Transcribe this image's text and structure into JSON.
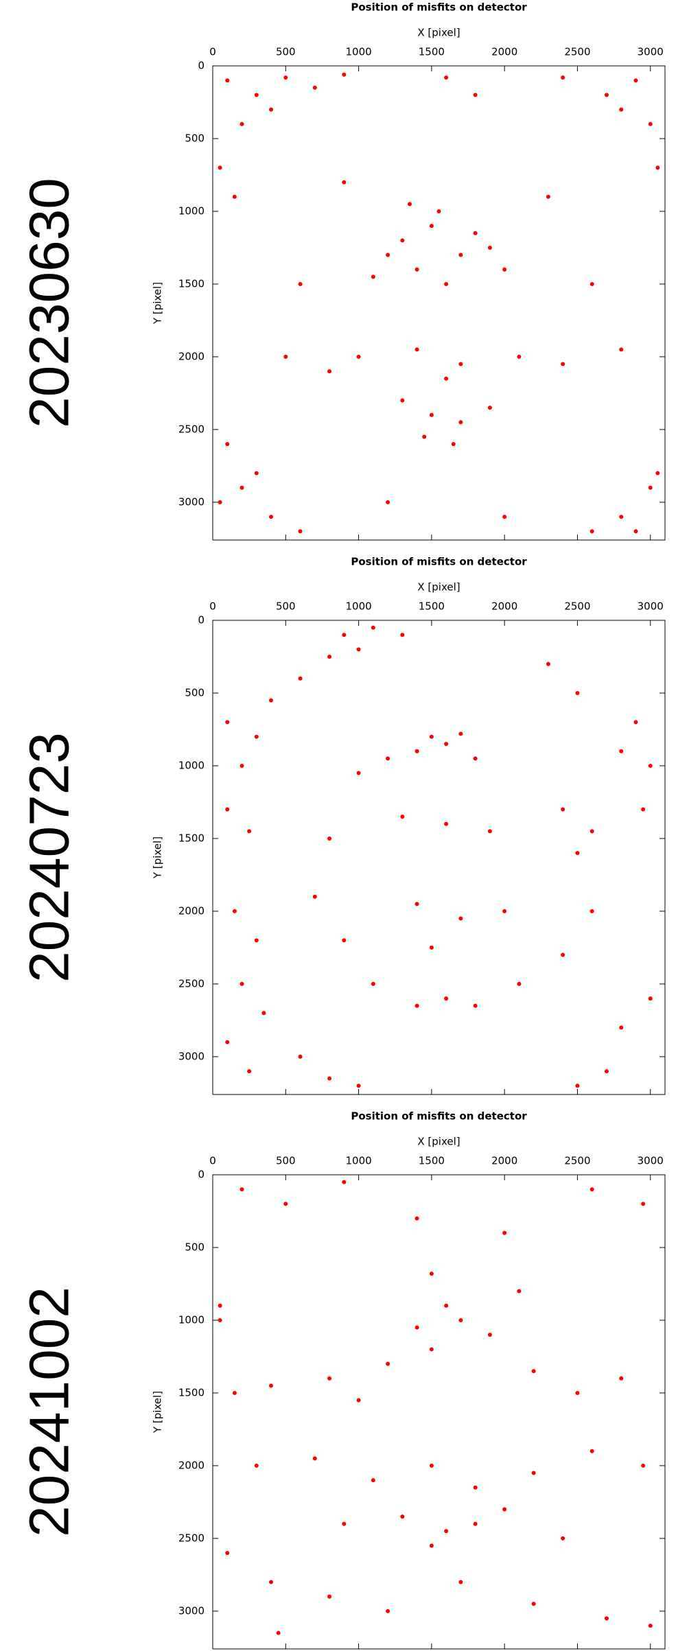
{
  "chart_data": [
    {
      "type": "scatter",
      "title": "Position of misfits on detector",
      "xlabel": "X [pixel]",
      "ylabel": "Y [pixel]",
      "date_label": "20230630",
      "xlim": [
        0,
        3100
      ],
      "ylim": [
        0,
        3260
      ],
      "xticks": [
        0,
        500,
        1000,
        1500,
        2000,
        2500,
        3000
      ],
      "yticks": [
        0,
        500,
        1000,
        1500,
        2000,
        2500,
        3000
      ],
      "y_inverted": true,
      "series": [
        {
          "color": "#ff0000",
          "x": [
            100,
            300,
            500,
            200,
            700,
            50,
            150,
            400,
            900,
            2400,
            2700,
            2900,
            3000,
            2800,
            3050,
            100,
            200,
            400,
            600,
            50,
            300,
            2800,
            3000,
            2600,
            3050,
            2900,
            1300,
            1500,
            1700,
            1400,
            1900,
            1100,
            1600,
            2000,
            1200,
            1800,
            1550,
            1350,
            1000,
            1400,
            1700,
            2100,
            1600,
            1300,
            1500,
            1700,
            1900,
            1450,
            1650,
            800,
            2400,
            2800,
            500,
            900,
            2300,
            600,
            2600,
            1200,
            2000,
            1600,
            1800
          ],
          "y": [
            100,
            200,
            80,
            400,
            150,
            700,
            900,
            300,
            60,
            80,
            200,
            100,
            400,
            300,
            700,
            2600,
            2900,
            3100,
            3200,
            3000,
            2800,
            3100,
            2900,
            3200,
            2800,
            3200,
            1200,
            1100,
            1300,
            1400,
            1250,
            1450,
            1500,
            1400,
            1300,
            1150,
            1000,
            950,
            2000,
            1950,
            2050,
            2000,
            2150,
            2300,
            2400,
            2450,
            2350,
            2550,
            2600,
            2100,
            2050,
            1950,
            2000,
            800,
            900,
            1500,
            1500,
            3000,
            3100,
            80,
            200
          ]
        }
      ]
    },
    {
      "type": "scatter",
      "title": "Position of misfits on detector",
      "xlabel": "X [pixel]",
      "ylabel": "Y [pixel]",
      "date_label": "20240723",
      "xlim": [
        0,
        3100
      ],
      "ylim": [
        0,
        3260
      ],
      "xticks": [
        0,
        500,
        1000,
        1500,
        2000,
        2500,
        3000
      ],
      "yticks": [
        0,
        500,
        1000,
        1500,
        2000,
        2500,
        3000
      ],
      "y_inverted": true,
      "series": [
        {
          "color": "#ff0000",
          "x": [
            900,
            1100,
            800,
            600,
            1000,
            1300,
            400,
            100,
            300,
            200,
            100,
            250,
            150,
            300,
            200,
            350,
            100,
            250,
            1500,
            1600,
            1700,
            1400,
            1800,
            1200,
            1000,
            800,
            700,
            900,
            1100,
            1400,
            1600,
            1800,
            2100,
            2400,
            2600,
            2500,
            2400,
            1300,
            1600,
            1900,
            1400,
            1700,
            2000,
            1500,
            2900,
            3000,
            2950,
            2600,
            2800,
            3000,
            2700,
            2500,
            2300,
            2500,
            2800,
            600,
            800,
            1000
          ],
          "y": [
            100,
            50,
            250,
            400,
            200,
            100,
            550,
            700,
            800,
            1000,
            1300,
            1450,
            2000,
            2200,
            2500,
            2700,
            2900,
            3100,
            800,
            850,
            780,
            900,
            950,
            950,
            1050,
            1500,
            1900,
            2200,
            2500,
            2650,
            2600,
            2650,
            2500,
            2300,
            2000,
            1600,
            1300,
            1350,
            1400,
            1450,
            1950,
            2050,
            2000,
            2250,
            700,
            1000,
            1300,
            1450,
            2800,
            2600,
            3100,
            3200,
            300,
            500,
            900,
            3000,
            3150,
            3200
          ]
        }
      ]
    },
    {
      "type": "scatter",
      "title": "Position of misfits on detector",
      "xlabel": "X [pixel]",
      "ylabel": "Y [pixel]",
      "date_label": "20241002",
      "xlim": [
        0,
        3100
      ],
      "ylim": [
        0,
        3260
      ],
      "xticks": [
        0,
        500,
        1000,
        1500,
        2000,
        2500,
        3000
      ],
      "yticks": [
        0,
        500,
        1000,
        1500,
        2000,
        2500,
        3000
      ],
      "y_inverted": true,
      "series": [
        {
          "color": "#ff0000",
          "x": [
            200,
            500,
            900,
            1400,
            2000,
            2600,
            2950,
            50,
            150,
            400,
            800,
            1200,
            1500,
            1700,
            1600,
            1900,
            2200,
            2500,
            2800,
            1000,
            1400,
            300,
            700,
            1100,
            1500,
            1800,
            2200,
            2600,
            2950,
            1300,
            1600,
            1800,
            1500,
            2000,
            900,
            2400,
            100,
            400,
            800,
            1200,
            1700,
            2200,
            2700,
            3000,
            450,
            1500,
            2100,
            50
          ],
          "y": [
            100,
            200,
            50,
            300,
            400,
            100,
            200,
            900,
            1500,
            1450,
            1400,
            1300,
            1200,
            1000,
            900,
            1100,
            1350,
            1500,
            1400,
            1550,
            1050,
            2000,
            1950,
            2100,
            2000,
            2150,
            2050,
            1900,
            2000,
            2350,
            2450,
            2400,
            2550,
            2300,
            2400,
            2500,
            2600,
            2800,
            2900,
            3000,
            2800,
            2950,
            3050,
            3100,
            3150,
            680,
            800,
            1000
          ]
        }
      ]
    }
  ]
}
